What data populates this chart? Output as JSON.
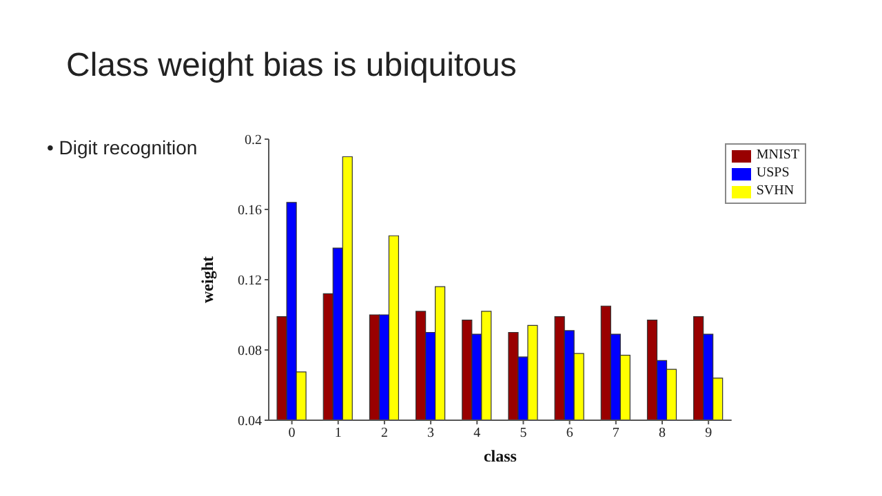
{
  "chart_data": {
    "type": "bar",
    "title": "Class weight bias is ubiquitous",
    "annotations": [
      "• Digit recognition"
    ],
    "xlabel": "class",
    "ylabel": "weight",
    "categories": [
      "0",
      "1",
      "2",
      "3",
      "4",
      "5",
      "6",
      "7",
      "8",
      "9"
    ],
    "series": [
      {
        "name": "MNIST",
        "color": "#990000",
        "values": [
          0.099,
          0.112,
          0.1,
          0.102,
          0.097,
          0.09,
          0.099,
          0.105,
          0.097,
          0.099
        ]
      },
      {
        "name": "USPS",
        "color": "#0000ff",
        "values": [
          0.164,
          0.138,
          0.1,
          0.09,
          0.089,
          0.076,
          0.091,
          0.089,
          0.074,
          0.089
        ]
      },
      {
        "name": "SVHN",
        "color": "#ffff00",
        "values": [
          0.0675,
          0.19,
          0.145,
          0.116,
          0.102,
          0.094,
          0.078,
          0.077,
          0.069,
          0.064
        ]
      }
    ],
    "ylim": [
      0.04,
      0.2
    ],
    "yticks": [
      0.04,
      0.08,
      0.12,
      0.16,
      0.2
    ],
    "grid": false,
    "legend": "top right"
  }
}
